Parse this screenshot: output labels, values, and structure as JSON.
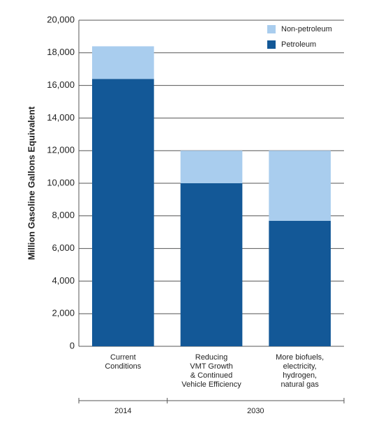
{
  "chart_data": {
    "type": "stacked-bar",
    "y_label": "Million Gasoline Gallons Equivalent",
    "groups": [
      {
        "label": "2014",
        "categories": [
          [
            "Current",
            "Conditions"
          ]
        ]
      },
      {
        "label": "2030",
        "categories": [
          [
            "Reducing",
            "VMT Growth",
            "& Continued",
            "Vehicle Efficiency"
          ],
          [
            "More biofuels,",
            "electricity,",
            "hydrogen,",
            "natural gas"
          ]
        ]
      }
    ],
    "series": [
      {
        "name": "Petroleum",
        "color": "#135897",
        "values": [
          16400,
          10000,
          7700
        ]
      },
      {
        "name": "Non-petroleum",
        "color": "#a9cdee",
        "values": [
          2000,
          2000,
          4300
        ]
      }
    ],
    "ylim": [
      0,
      20000
    ],
    "yticks": [
      {
        "value": 0,
        "label": "0"
      },
      {
        "value": 2000,
        "label": "2,000"
      },
      {
        "value": 4000,
        "label": "4,000"
      },
      {
        "value": 6000,
        "label": "6,000"
      },
      {
        "value": 8000,
        "label": "8,000"
      },
      {
        "value": 10000,
        "label": "10,000"
      },
      {
        "value": 12000,
        "label": "12,000"
      },
      {
        "value": 14000,
        "label": "14,000"
      },
      {
        "value": 16000,
        "label": "16,000"
      },
      {
        "value": 18000,
        "label": "18,000"
      },
      {
        "value": 20000,
        "label": "20,000"
      }
    ],
    "grid": true,
    "legend": "top-right"
  }
}
